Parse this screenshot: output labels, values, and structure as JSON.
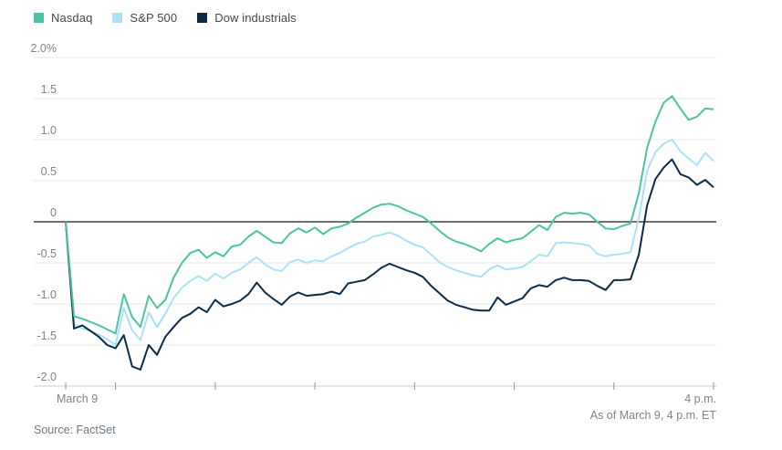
{
  "legend": {
    "items": [
      {
        "label": "Nasdaq",
        "color": "#4cc3a2"
      },
      {
        "label": "S&P 500",
        "color": "#a9e2f7"
      },
      {
        "label": "Dow industrials",
        "color": "#0b2b49"
      }
    ]
  },
  "footer": {
    "as_of": "As of March 9, 4 p.m. ET",
    "source": "Source: FactSet"
  },
  "chart_data": {
    "type": "line",
    "title": "",
    "unit": "percent change",
    "grid": "horizontal",
    "legend_position": "top-left",
    "x_axis": {
      "start_label": "March 9",
      "end_label": "4 p.m.",
      "range_minutes": [
        0,
        390
      ],
      "tick_minutes": [
        0,
        30,
        90,
        150,
        210,
        270,
        330,
        390
      ]
    },
    "y_axis": {
      "tick_labels": [
        "2.0%",
        "1.5",
        "1.0",
        "0.5",
        "0",
        "-0.5",
        "-1.0",
        "-1.5",
        "-2.0"
      ],
      "tick_values": [
        2.0,
        1.5,
        1.0,
        0.5,
        0,
        -0.5,
        -1.0,
        -1.5,
        -2.0
      ],
      "ylim": [
        -2.0,
        2.0
      ]
    },
    "x_minutes": [
      0,
      5,
      10,
      15,
      20,
      25,
      30,
      35,
      40,
      45,
      50,
      55,
      60,
      65,
      70,
      75,
      80,
      85,
      90,
      95,
      100,
      105,
      110,
      115,
      120,
      125,
      130,
      135,
      140,
      145,
      150,
      155,
      160,
      165,
      170,
      175,
      180,
      185,
      190,
      195,
      200,
      205,
      210,
      215,
      220,
      225,
      230,
      235,
      240,
      245,
      250,
      255,
      260,
      265,
      270,
      275,
      280,
      285,
      290,
      295,
      300,
      305,
      310,
      315,
      320,
      325,
      330,
      335,
      340,
      345,
      350,
      355,
      360,
      365,
      370,
      375,
      380,
      385,
      390
    ],
    "series": [
      {
        "name": "Nasdaq",
        "color": "#4cc3a2",
        "values": [
          0,
          -1.15,
          -1.18,
          -1.22,
          -1.26,
          -1.31,
          -1.36,
          -0.88,
          -1.16,
          -1.28,
          -0.9,
          -1.05,
          -0.95,
          -0.68,
          -0.5,
          -0.38,
          -0.34,
          -0.44,
          -0.37,
          -0.42,
          -0.3,
          -0.28,
          -0.18,
          -0.11,
          -0.18,
          -0.25,
          -0.26,
          -0.14,
          -0.08,
          -0.13,
          -0.07,
          -0.15,
          -0.08,
          -0.06,
          -0.02,
          0.05,
          0.11,
          0.17,
          0.21,
          0.22,
          0.19,
          0.14,
          0.1,
          0.06,
          -0.02,
          -0.11,
          -0.19,
          -0.24,
          -0.27,
          -0.31,
          -0.36,
          -0.27,
          -0.2,
          -0.25,
          -0.22,
          -0.2,
          -0.12,
          -0.04,
          -0.1,
          0.06,
          0.11,
          0.1,
          0.11,
          0.09,
          0,
          -0.08,
          -0.09,
          -0.05,
          -0.02,
          0.35,
          0.9,
          1.22,
          1.45,
          1.53,
          1.38,
          1.24,
          1.28,
          1.38,
          1.37
        ]
      },
      {
        "name": "S&P 500",
        "color": "#a9e2f7",
        "values": [
          0,
          -1.25,
          -1.3,
          -1.33,
          -1.37,
          -1.43,
          -1.5,
          -1.05,
          -1.32,
          -1.44,
          -1.1,
          -1.28,
          -1.12,
          -0.93,
          -0.8,
          -0.72,
          -0.66,
          -0.72,
          -0.63,
          -0.69,
          -0.62,
          -0.58,
          -0.5,
          -0.43,
          -0.52,
          -0.58,
          -0.6,
          -0.49,
          -0.46,
          -0.5,
          -0.47,
          -0.48,
          -0.42,
          -0.38,
          -0.32,
          -0.27,
          -0.24,
          -0.18,
          -0.16,
          -0.13,
          -0.17,
          -0.23,
          -0.28,
          -0.31,
          -0.4,
          -0.49,
          -0.55,
          -0.59,
          -0.62,
          -0.65,
          -0.67,
          -0.58,
          -0.53,
          -0.58,
          -0.57,
          -0.55,
          -0.48,
          -0.4,
          -0.42,
          -0.26,
          -0.25,
          -0.26,
          -0.27,
          -0.29,
          -0.39,
          -0.42,
          -0.4,
          -0.39,
          -0.37,
          0.05,
          0.62,
          0.85,
          0.95,
          1.0,
          0.86,
          0.77,
          0.69,
          0.84,
          0.74
        ]
      },
      {
        "name": "Dow industrials",
        "color": "#0b2b49",
        "values": [
          0,
          -1.3,
          -1.26,
          -1.33,
          -1.4,
          -1.5,
          -1.54,
          -1.38,
          -1.76,
          -1.8,
          -1.5,
          -1.62,
          -1.4,
          -1.28,
          -1.17,
          -1.12,
          -1.04,
          -1.1,
          -0.95,
          -1.03,
          -1.0,
          -0.96,
          -0.88,
          -0.74,
          -0.86,
          -0.94,
          -1.01,
          -0.91,
          -0.86,
          -0.9,
          -0.89,
          -0.88,
          -0.85,
          -0.88,
          -0.75,
          -0.73,
          -0.71,
          -0.64,
          -0.56,
          -0.51,
          -0.55,
          -0.59,
          -0.62,
          -0.67,
          -0.78,
          -0.87,
          -0.96,
          -1.01,
          -1.04,
          -1.07,
          -1.08,
          -1.08,
          -0.92,
          -1.01,
          -0.97,
          -0.93,
          -0.81,
          -0.77,
          -0.79,
          -0.71,
          -0.68,
          -0.71,
          -0.71,
          -0.72,
          -0.78,
          -0.83,
          -0.71,
          -0.71,
          -0.7,
          -0.4,
          0.2,
          0.52,
          0.66,
          0.76,
          0.58,
          0.54,
          0.45,
          0.51,
          0.42
        ]
      }
    ],
    "style": {
      "gridline_color": "#e6e8ea",
      "zero_line_color": "#1b1b1b",
      "axis_line_color": "#c8cdd1",
      "tick_color": "#8d959c"
    }
  }
}
